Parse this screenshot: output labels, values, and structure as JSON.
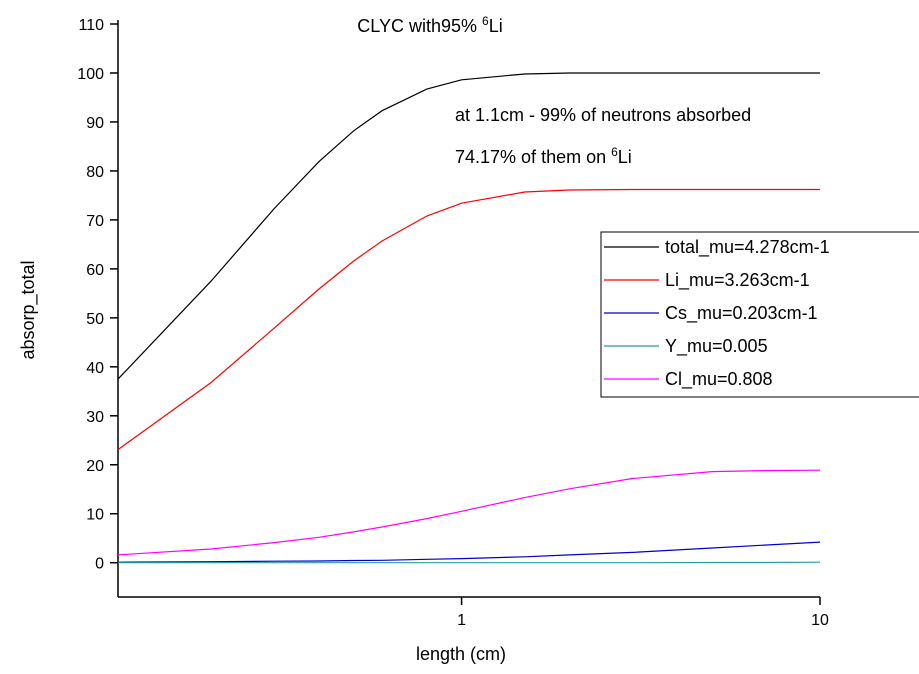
{
  "chart_data": {
    "type": "line",
    "title": {
      "text": "CLYC with95%",
      "sup": "6",
      "tail": "Li"
    },
    "annotations": [
      {
        "text": "at 1.1cm - 99% of neutrons absorbed"
      },
      {
        "text": "74.17% of them on",
        "sup": "6",
        "tail": "Li"
      }
    ],
    "x_label": "length (cm)",
    "y_label": "absorp_total",
    "x_log": true,
    "xlim": [
      0.11,
      10
    ],
    "xticks": [
      1,
      10
    ],
    "ylim": [
      -7,
      110
    ],
    "yticks": [
      0,
      10,
      20,
      30,
      40,
      50,
      60,
      70,
      80,
      90,
      100,
      110
    ],
    "legend_position": "right",
    "x": [
      0.11,
      0.2,
      0.3,
      0.4,
      0.5,
      0.6,
      0.8,
      1,
      1.5,
      2,
      3,
      5,
      7,
      10
    ],
    "series": [
      {
        "name": "total_mu=4.278cm-1",
        "color": "#000000",
        "values": [
          37.5,
          57.5,
          72.3,
          81.9,
          88.2,
          92.3,
          96.7,
          98.6,
          99.8,
          100,
          100,
          100,
          100,
          100
        ]
      },
      {
        "name": "Li_mu=3.263cm-1",
        "color": "#ff0000",
        "values": [
          23.1,
          36.8,
          47.9,
          55.9,
          61.6,
          65.7,
          70.8,
          73.4,
          75.7,
          76.1,
          76.2,
          76.2,
          76.2,
          76.2
        ]
      },
      {
        "name": "Cs_mu=0.203cm-1",
        "color": "#0000cc",
        "values": [
          0.1,
          0.2,
          0.3,
          0.35,
          0.45,
          0.5,
          0.7,
          0.85,
          1.2,
          1.6,
          2.1,
          3.0,
          3.6,
          4.2
        ]
      },
      {
        "name": "Y_mu=0.005",
        "color": "#2a9d9d",
        "values": [
          0,
          0,
          0,
          0,
          0,
          0,
          0,
          0,
          0,
          0,
          0,
          0.05,
          0.05,
          0.1
        ]
      },
      {
        "name": "Cl_mu=0.808",
        "color": "#ff00ff",
        "values": [
          1.6,
          2.8,
          4.1,
          5.2,
          6.3,
          7.3,
          9.0,
          10.5,
          13.3,
          15.1,
          17.2,
          18.6,
          18.8,
          18.9
        ]
      }
    ]
  }
}
